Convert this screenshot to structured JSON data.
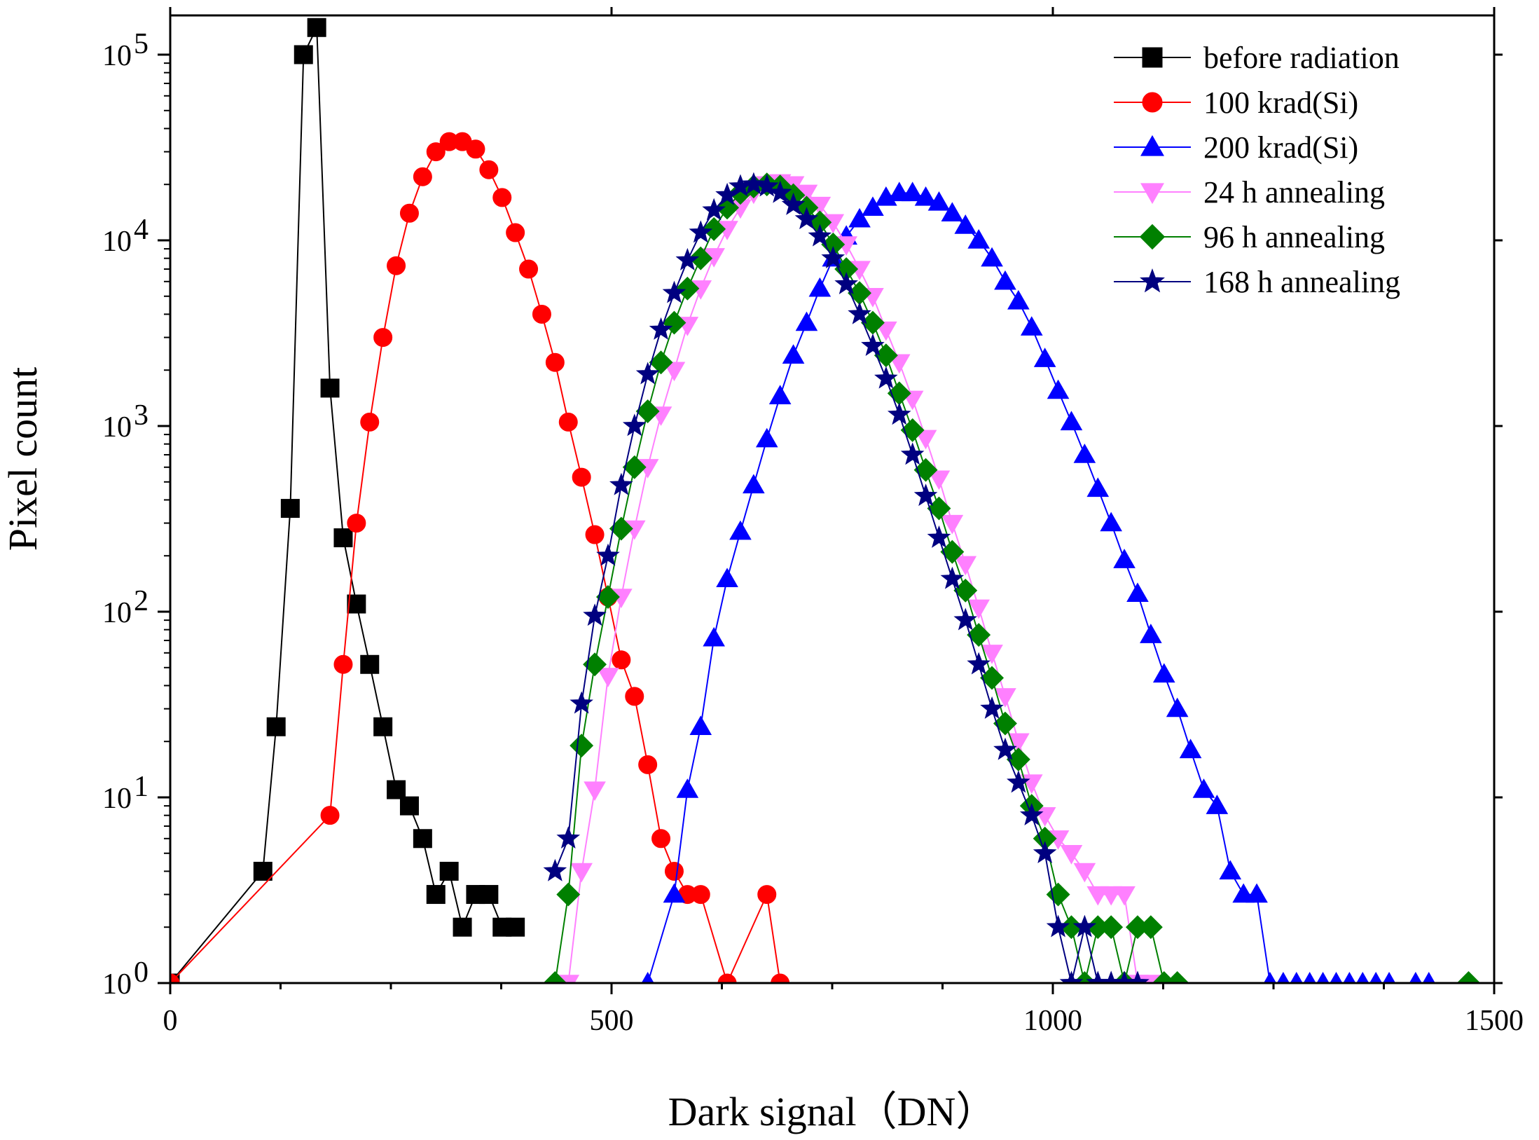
{
  "chart_data": {
    "type": "line",
    "xlabel": "Dark signal（DN）",
    "ylabel": "Pixel count",
    "xlim": [
      0,
      1500
    ],
    "ylim": [
      1,
      200000
    ],
    "yscale": "log",
    "x_ticks": [
      "0",
      "500",
      "1000",
      "1500"
    ],
    "y_ticks": [
      {
        "base": "10",
        "exp": "0"
      },
      {
        "base": "10",
        "exp": "1"
      },
      {
        "base": "10",
        "exp": "2"
      },
      {
        "base": "10",
        "exp": "3"
      },
      {
        "base": "10",
        "exp": "4"
      },
      {
        "base": "10",
        "exp": "5"
      }
    ],
    "legend_position": "top-right",
    "series": [
      {
        "name": "before radiation",
        "color": "#000000",
        "marker": "square",
        "x": [
          0,
          105,
          120,
          136,
          151,
          166,
          181,
          196,
          211,
          226,
          241,
          256,
          271,
          286,
          301,
          316,
          331,
          346,
          361,
          376,
          391
        ],
        "y": [
          1,
          4,
          24,
          360,
          100000,
          140000,
          1600,
          250,
          110,
          52,
          24,
          11,
          9,
          6,
          3,
          4,
          2,
          3,
          3,
          2,
          2
        ]
      },
      {
        "name": "100 krad(Si)",
        "color": "#ff0000",
        "marker": "circle",
        "x": [
          0,
          181,
          196,
          211,
          226,
          241,
          256,
          271,
          286,
          301,
          316,
          331,
          346,
          361,
          376,
          391,
          406,
          421,
          436,
          451,
          466,
          481,
          496,
          511,
          526,
          541,
          556,
          571,
          586,
          601,
          631,
          676,
          691
        ],
        "y": [
          1,
          8,
          52,
          300,
          1050,
          3000,
          7300,
          14000,
          22000,
          30000,
          34000,
          34000,
          31000,
          24000,
          17000,
          11000,
          7000,
          4000,
          2200,
          1050,
          530,
          260,
          120,
          55,
          35,
          15,
          6,
          4,
          3,
          3,
          1,
          3,
          1
        ]
      },
      {
        "name": "200 krad(Si)",
        "color": "#0000ff",
        "marker": "triangle-up",
        "x": [
          541,
          571,
          586,
          601,
          616,
          631,
          646,
          661,
          676,
          691,
          706,
          721,
          736,
          751,
          766,
          781,
          796,
          811,
          826,
          841,
          856,
          871,
          886,
          901,
          916,
          931,
          946,
          961,
          976,
          991,
          1006,
          1021,
          1036,
          1051,
          1066,
          1081,
          1096,
          1111,
          1126,
          1141,
          1156,
          1171,
          1186,
          1201,
          1216,
          1231,
          1246,
          1261,
          1276,
          1291,
          1306,
          1321,
          1336,
          1351,
          1366,
          1381,
          1411,
          1426
        ],
        "y": [
          1,
          3,
          11,
          24,
          72,
          150,
          270,
          480,
          850,
          1450,
          2400,
          3600,
          5500,
          8000,
          10500,
          13000,
          15000,
          17000,
          18000,
          18000,
          17000,
          16000,
          14000,
          12000,
          10000,
          8000,
          6000,
          4700,
          3400,
          2300,
          1550,
          1050,
          700,
          460,
          300,
          190,
          125,
          75,
          46,
          30,
          18,
          11,
          9,
          4,
          3,
          3,
          1,
          1,
          1,
          1,
          1,
          1,
          1,
          1,
          1,
          1,
          1,
          1
        ]
      },
      {
        "name": "24 h annealing",
        "color": "#ff80ff",
        "marker": "triangle-down",
        "x": [
          451,
          466,
          481,
          496,
          511,
          526,
          541,
          556,
          571,
          586,
          601,
          616,
          631,
          646,
          661,
          676,
          691,
          706,
          721,
          736,
          751,
          766,
          781,
          796,
          811,
          826,
          841,
          856,
          871,
          886,
          901,
          916,
          931,
          946,
          961,
          976,
          991,
          1006,
          1021,
          1036,
          1051,
          1066,
          1081,
          1096,
          1111
        ],
        "y": [
          1,
          4,
          11,
          45,
          120,
          280,
          600,
          1150,
          2000,
          3500,
          5500,
          8200,
          11500,
          15000,
          18000,
          20000,
          20500,
          20000,
          18000,
          15500,
          12500,
          9500,
          7000,
          5000,
          3300,
          2200,
          1400,
          860,
          520,
          300,
          180,
          105,
          60,
          35,
          20,
          12,
          8,
          6,
          5,
          4,
          3,
          3,
          3,
          1,
          1
        ]
      },
      {
        "name": "96 h annealing",
        "color": "#008000",
        "marker": "diamond",
        "x": [
          436,
          451,
          466,
          481,
          496,
          511,
          526,
          541,
          556,
          571,
          586,
          601,
          616,
          631,
          646,
          661,
          676,
          691,
          706,
          721,
          736,
          751,
          766,
          781,
          796,
          811,
          826,
          841,
          856,
          871,
          886,
          901,
          916,
          931,
          946,
          961,
          976,
          991,
          1006,
          1021,
          1036,
          1051,
          1066,
          1081,
          1096,
          1111,
          1126,
          1141,
          1471
        ],
        "y": [
          1,
          3,
          19,
          52,
          120,
          280,
          600,
          1200,
          2200,
          3600,
          5500,
          8000,
          11500,
          15000,
          18000,
          19500,
          20000,
          19500,
          17500,
          15000,
          12500,
          9500,
          7000,
          5200,
          3600,
          2400,
          1500,
          950,
          580,
          360,
          210,
          130,
          75,
          44,
          25,
          16,
          9,
          6,
          3,
          2,
          1,
          2,
          2,
          1,
          2,
          2,
          1,
          1,
          1
        ]
      },
      {
        "name": "168 h annealing",
        "color": "#000080",
        "marker": "star",
        "x": [
          436,
          451,
          466,
          481,
          496,
          511,
          526,
          541,
          556,
          571,
          586,
          601,
          616,
          631,
          646,
          661,
          676,
          691,
          706,
          721,
          736,
          751,
          766,
          781,
          796,
          811,
          826,
          841,
          856,
          871,
          886,
          901,
          916,
          931,
          946,
          961,
          976,
          991,
          1006,
          1021,
          1036,
          1051,
          1066,
          1081,
          1096
        ],
        "y": [
          4,
          6,
          32,
          95,
          200,
          480,
          1000,
          1900,
          3300,
          5200,
          7800,
          11000,
          14500,
          17500,
          19500,
          20000,
          19500,
          18000,
          15500,
          13000,
          10500,
          8000,
          5800,
          4000,
          2700,
          1800,
          1150,
          700,
          420,
          250,
          150,
          90,
          52,
          30,
          18,
          12,
          8,
          5,
          2,
          1,
          2,
          1,
          1,
          1,
          1
        ]
      }
    ]
  }
}
